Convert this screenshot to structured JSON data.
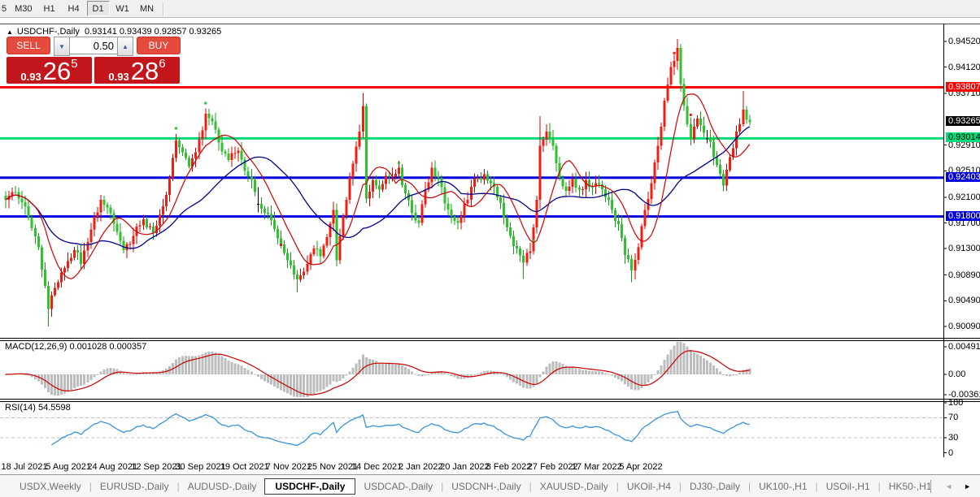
{
  "toolbar": {
    "timeframes": [
      "5",
      "M30",
      "H1",
      "H4",
      "D1",
      "W1",
      "MN"
    ],
    "active": "D1"
  },
  "chart": {
    "symbol_title": "USDCHF-,Daily",
    "ohlc": "0.93141 0.93439 0.92857 0.93265",
    "open": "0.93141",
    "high": "0.93439",
    "low": "0.92857",
    "close": "0.93265"
  },
  "trade_panel": {
    "sell_label": "SELL",
    "buy_label": "BUY",
    "volume": "0.50",
    "sell_price_base": "0.93",
    "sell_price_big": "26",
    "sell_price_sup": "5",
    "buy_price_base": "0.93",
    "buy_price_big": "28",
    "buy_price_sup": "6"
  },
  "price_axis": {
    "labels": [
      "0.94520",
      "0.94120",
      "0.93710",
      "0.92910",
      "0.92510",
      "0.92100",
      "0.91700",
      "0.91300",
      "0.90890",
      "0.90490",
      "0.90090"
    ],
    "badges": [
      {
        "text": "0.93807",
        "bg": "#fe0000",
        "fg": "#ffffff",
        "price": 0.93807
      },
      {
        "text": "0.93265",
        "bg": "#000000",
        "fg": "#ffffff",
        "price": 0.93265
      },
      {
        "text": "0.93014",
        "bg": "#00dc7a",
        "fg": "#000000",
        "price": 0.93014
      },
      {
        "text": "0.92403",
        "bg": "#0000e0",
        "fg": "#ffffff",
        "price": 0.92403
      },
      {
        "text": "0.91800",
        "bg": "#0000e0",
        "fg": "#ffffff",
        "price": 0.918
      }
    ]
  },
  "hlines": [
    {
      "price": 0.93807,
      "color": "#fe0000"
    },
    {
      "price": 0.93014,
      "color": "#00dc7a"
    },
    {
      "price": 0.92403,
      "color": "#0000e0"
    },
    {
      "price": 0.918,
      "color": "#0000e0"
    }
  ],
  "macd": {
    "label": "MACD(12,26,9) 0.001028 0.000357",
    "fast": 12,
    "slow": 26,
    "signal": 9,
    "value": "0.001028",
    "signal_value": "0.000357",
    "axis": [
      {
        "text": "0.004913",
        "v": 0.004913
      },
      {
        "text": "0.00",
        "v": 0
      },
      {
        "text": "-0.003614",
        "v": -0.003614
      }
    ]
  },
  "rsi": {
    "label": "RSI(14) 54.5598",
    "period": 14,
    "value": "54.5598",
    "axis": [
      {
        "text": "100",
        "v": 100
      },
      {
        "text": "70",
        "v": 70
      },
      {
        "text": "30",
        "v": 30
      },
      {
        "text": "0",
        "v": 0
      }
    ],
    "levels": [
      70,
      30
    ]
  },
  "date_axis": {
    "labels": [
      "18 Jul 2021",
      "5 Aug 2021",
      "24 Aug 2021",
      "12 Sep 2021",
      "30 Sep 2021",
      "19 Oct 2021",
      "7 Nov 2021",
      "25 Nov 2021",
      "14 Dec 2021",
      "2 Jan 2022",
      "20 Jan 2022",
      "8 Feb 2022",
      "27 Feb 2022",
      "17 Mar 2022",
      "5 Apr 2022"
    ]
  },
  "tabs": {
    "items": [
      "USDX,Weekly",
      "EURUSD-,Daily",
      "AUDUSD-,Daily",
      "USDCHF-,Daily",
      "USDCAD-,Daily",
      "USDCNH-,Daily",
      "XAUUSD-,Daily",
      "UKOil-,H4",
      "DJ30-,Daily",
      "UK100-,H1",
      "USOil-,H1",
      "HK50-,H1"
    ],
    "active_index": 3,
    "scroll_left": "◄",
    "scroll_right": "►"
  },
  "chart_data": {
    "type": "candlestick",
    "symbol": "USDCHF",
    "timeframe": "Daily",
    "count": 228,
    "seed": 11,
    "price_range": {
      "top": 0.94785,
      "bottom": 0.89915
    },
    "last_price": 0.93265,
    "close_anchors": [
      [
        0,
        0.9206
      ],
      [
        2,
        0.9218
      ],
      [
        4,
        0.9208
      ],
      [
        6,
        0.9196
      ],
      [
        8,
        0.9162
      ],
      [
        10,
        0.9132
      ],
      [
        12,
        0.9072
      ],
      [
        13,
        0.9036
      ],
      [
        14,
        0.9058
      ],
      [
        16,
        0.9078
      ],
      [
        18,
        0.91
      ],
      [
        21,
        0.9128
      ],
      [
        23,
        0.9106
      ],
      [
        26,
        0.916
      ],
      [
        29,
        0.9206
      ],
      [
        31,
        0.9194
      ],
      [
        34,
        0.9156
      ],
      [
        36,
        0.9128
      ],
      [
        39,
        0.915
      ],
      [
        42,
        0.9176
      ],
      [
        45,
        0.9154
      ],
      [
        48,
        0.9196
      ],
      [
        50,
        0.924
      ],
      [
        52,
        0.9298
      ],
      [
        54,
        0.928
      ],
      [
        56,
        0.9258
      ],
      [
        58,
        0.928
      ],
      [
        61,
        0.934
      ],
      [
        63,
        0.9328
      ],
      [
        65,
        0.9295
      ],
      [
        68,
        0.9268
      ],
      [
        71,
        0.9282
      ],
      [
        74,
        0.9242
      ],
      [
        76,
        0.9218
      ],
      [
        78,
        0.9192
      ],
      [
        80,
        0.9184
      ],
      [
        83,
        0.9146
      ],
      [
        86,
        0.9112
      ],
      [
        89,
        0.9082
      ],
      [
        92,
        0.9106
      ],
      [
        94,
        0.913
      ],
      [
        96,
        0.9118
      ],
      [
        98,
        0.9148
      ],
      [
        100,
        0.919
      ],
      [
        101,
        0.9112
      ],
      [
        102,
        0.915
      ],
      [
        104,
        0.9206
      ],
      [
        106,
        0.9262
      ],
      [
        108,
        0.9312
      ],
      [
        109,
        0.9352
      ],
      [
        110,
        0.9208
      ],
      [
        112,
        0.9236
      ],
      [
        114,
        0.9222
      ],
      [
        116,
        0.9243
      ],
      [
        118,
        0.9242
      ],
      [
        120,
        0.9256
      ],
      [
        122,
        0.9216
      ],
      [
        124,
        0.9186
      ],
      [
        126,
        0.917
      ],
      [
        128,
        0.9222
      ],
      [
        130,
        0.9256
      ],
      [
        132,
        0.924
      ],
      [
        134,
        0.92
      ],
      [
        136,
        0.918
      ],
      [
        138,
        0.917
      ],
      [
        140,
        0.92
      ],
      [
        142,
        0.9226
      ],
      [
        144,
        0.924
      ],
      [
        146,
        0.9246
      ],
      [
        148,
        0.9232
      ],
      [
        150,
        0.921
      ],
      [
        152,
        0.9178
      ],
      [
        154,
        0.915
      ],
      [
        156,
        0.913
      ],
      [
        158,
        0.9108
      ],
      [
        160,
        0.9126
      ],
      [
        162,
        0.9206
      ],
      [
        163,
        0.929
      ],
      [
        165,
        0.9312
      ],
      [
        167,
        0.929
      ],
      [
        169,
        0.924
      ],
      [
        171,
        0.922
      ],
      [
        173,
        0.9238
      ],
      [
        175,
        0.9222
      ],
      [
        177,
        0.9236
      ],
      [
        179,
        0.9226
      ],
      [
        181,
        0.923
      ],
      [
        183,
        0.921
      ],
      [
        185,
        0.919
      ],
      [
        187,
        0.9168
      ],
      [
        189,
        0.912
      ],
      [
        191,
        0.9096
      ],
      [
        193,
        0.9132
      ],
      [
        195,
        0.919
      ],
      [
        197,
        0.9232
      ],
      [
        199,
        0.929
      ],
      [
        201,
        0.936
      ],
      [
        203,
        0.9412
      ],
      [
        205,
        0.9442
      ],
      [
        206,
        0.9386
      ],
      [
        207,
        0.9352
      ],
      [
        209,
        0.93
      ],
      [
        211,
        0.9332
      ],
      [
        213,
        0.931
      ],
      [
        215,
        0.9296
      ],
      [
        217,
        0.926
      ],
      [
        219,
        0.9228
      ],
      [
        221,
        0.9272
      ],
      [
        223,
        0.9312
      ],
      [
        225,
        0.9346
      ],
      [
        226,
        0.933
      ],
      [
        227,
        0.93265
      ]
    ],
    "specials": {
      "13": {
        "low": 0.9009
      },
      "77": {
        "black": true
      },
      "89": {
        "low": 0.9062
      },
      "109": {
        "high": 0.9372
      },
      "158": {
        "low": 0.9083
      },
      "163": {
        "high": 0.9336
      },
      "191": {
        "low": 0.9078
      },
      "205": {
        "high": 0.9455
      },
      "214": {
        "black": true
      },
      "219": {
        "low": 0.922
      },
      "225": {
        "high": 0.9375
      }
    },
    "markers": [
      {
        "i": 52,
        "price": 0.9317,
        "color": "#2ec22e"
      },
      {
        "i": 57,
        "price": 0.9262,
        "color": "#e21b1b"
      },
      {
        "i": 61,
        "price": 0.9356,
        "color": "#2ec22e"
      },
      {
        "i": 84,
        "price": 0.9136,
        "color": "#e21b1b"
      },
      {
        "i": 120,
        "price": 0.9263,
        "color": "#2ec22e"
      },
      {
        "i": 161,
        "price": 0.9142,
        "color": "#2ec22e"
      },
      {
        "i": 204,
        "price": 0.9434,
        "color": "#e21b1b"
      },
      {
        "i": 209,
        "price": 0.9338,
        "color": "#e21b1b"
      },
      {
        "i": 216,
        "price": 0.93,
        "color": "#2ec22e"
      }
    ],
    "ma_fast_period": 10,
    "ma_slow_period": 30,
    "colors": {
      "up": "#f21d12",
      "up_stroke": "#d40000",
      "down": "#2ec22e",
      "down_stroke": "#14a014",
      "ma_fast": "#d40000",
      "ma_slow": "#00008b",
      "macd_hist": "#bdbdbd",
      "macd_signal": "#cc0000",
      "rsi": "#3b94d9",
      "rsi_level": "#c4c4c4"
    }
  }
}
